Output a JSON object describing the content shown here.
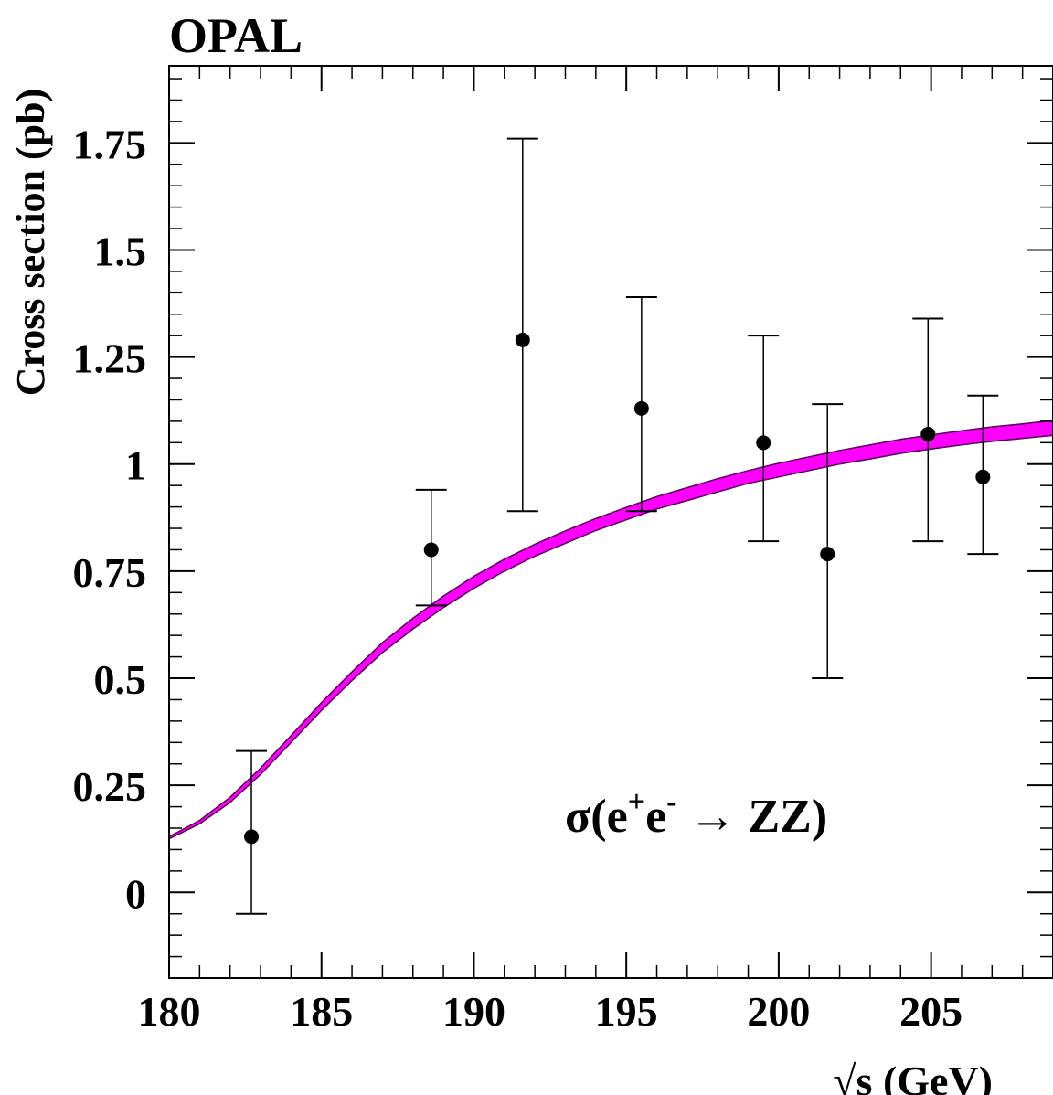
{
  "chart_data": {
    "type": "scatter",
    "title": "OPAL",
    "xlabel": "√s (GeV)",
    "ylabel": "Cross section (pb)",
    "annotation": {
      "sigma": "σ(e",
      "plus": "+",
      "e": "e",
      "minus": "-",
      "arrow": " → ZZ)"
    },
    "xlim": [
      180,
      209
    ],
    "ylim": [
      -0.2,
      1.93
    ],
    "x_ticks": [
      180,
      185,
      190,
      195,
      200,
      205
    ],
    "x_tick_labels": [
      "180",
      "185",
      "190",
      "195",
      "200",
      "205"
    ],
    "y_ticks": [
      0,
      0.25,
      0.5,
      0.75,
      1,
      1.25,
      1.5,
      1.75
    ],
    "y_tick_labels": [
      "0",
      "0.25",
      "0.5",
      "0.75",
      "1",
      "1.25",
      "1.5",
      "1.75"
    ],
    "grid": false,
    "colors": {
      "band": "#ff00ff",
      "band_edge": "#550055",
      "points": "#000000"
    },
    "series": [
      {
        "type": "scatter_errorbars",
        "x": [
          182.7,
          188.6,
          191.6,
          195.5,
          199.5,
          201.6,
          204.9,
          206.7
        ],
        "y": [
          0.13,
          0.8,
          1.29,
          1.13,
          1.05,
          0.79,
          1.07,
          0.97
        ],
        "err_low": [
          0.18,
          0.13,
          0.4,
          0.24,
          0.23,
          0.29,
          0.25,
          0.18
        ],
        "err_high": [
          0.2,
          0.14,
          0.47,
          0.26,
          0.25,
          0.35,
          0.27,
          0.19
        ]
      },
      {
        "type": "band",
        "x": [
          180,
          181,
          182,
          183,
          184,
          185,
          186,
          187,
          188,
          189,
          190,
          191,
          192,
          193,
          194,
          195,
          196,
          197,
          198,
          199,
          200,
          201,
          202,
          203,
          204,
          205,
          206,
          207,
          208,
          209
        ],
        "lower": [
          0.125,
          0.16,
          0.21,
          0.275,
          0.35,
          0.425,
          0.495,
          0.56,
          0.615,
          0.665,
          0.71,
          0.75,
          0.785,
          0.815,
          0.845,
          0.87,
          0.895,
          0.915,
          0.935,
          0.955,
          0.97,
          0.985,
          1.0,
          1.012,
          1.025,
          1.035,
          1.045,
          1.053,
          1.06,
          1.067
        ],
        "upper": [
          0.13,
          0.168,
          0.222,
          0.29,
          0.366,
          0.443,
          0.515,
          0.583,
          0.64,
          0.692,
          0.738,
          0.778,
          0.813,
          0.844,
          0.873,
          0.899,
          0.924,
          0.945,
          0.966,
          0.985,
          1.002,
          1.017,
          1.032,
          1.045,
          1.058,
          1.068,
          1.078,
          1.087,
          1.094,
          1.102
        ]
      }
    ]
  }
}
